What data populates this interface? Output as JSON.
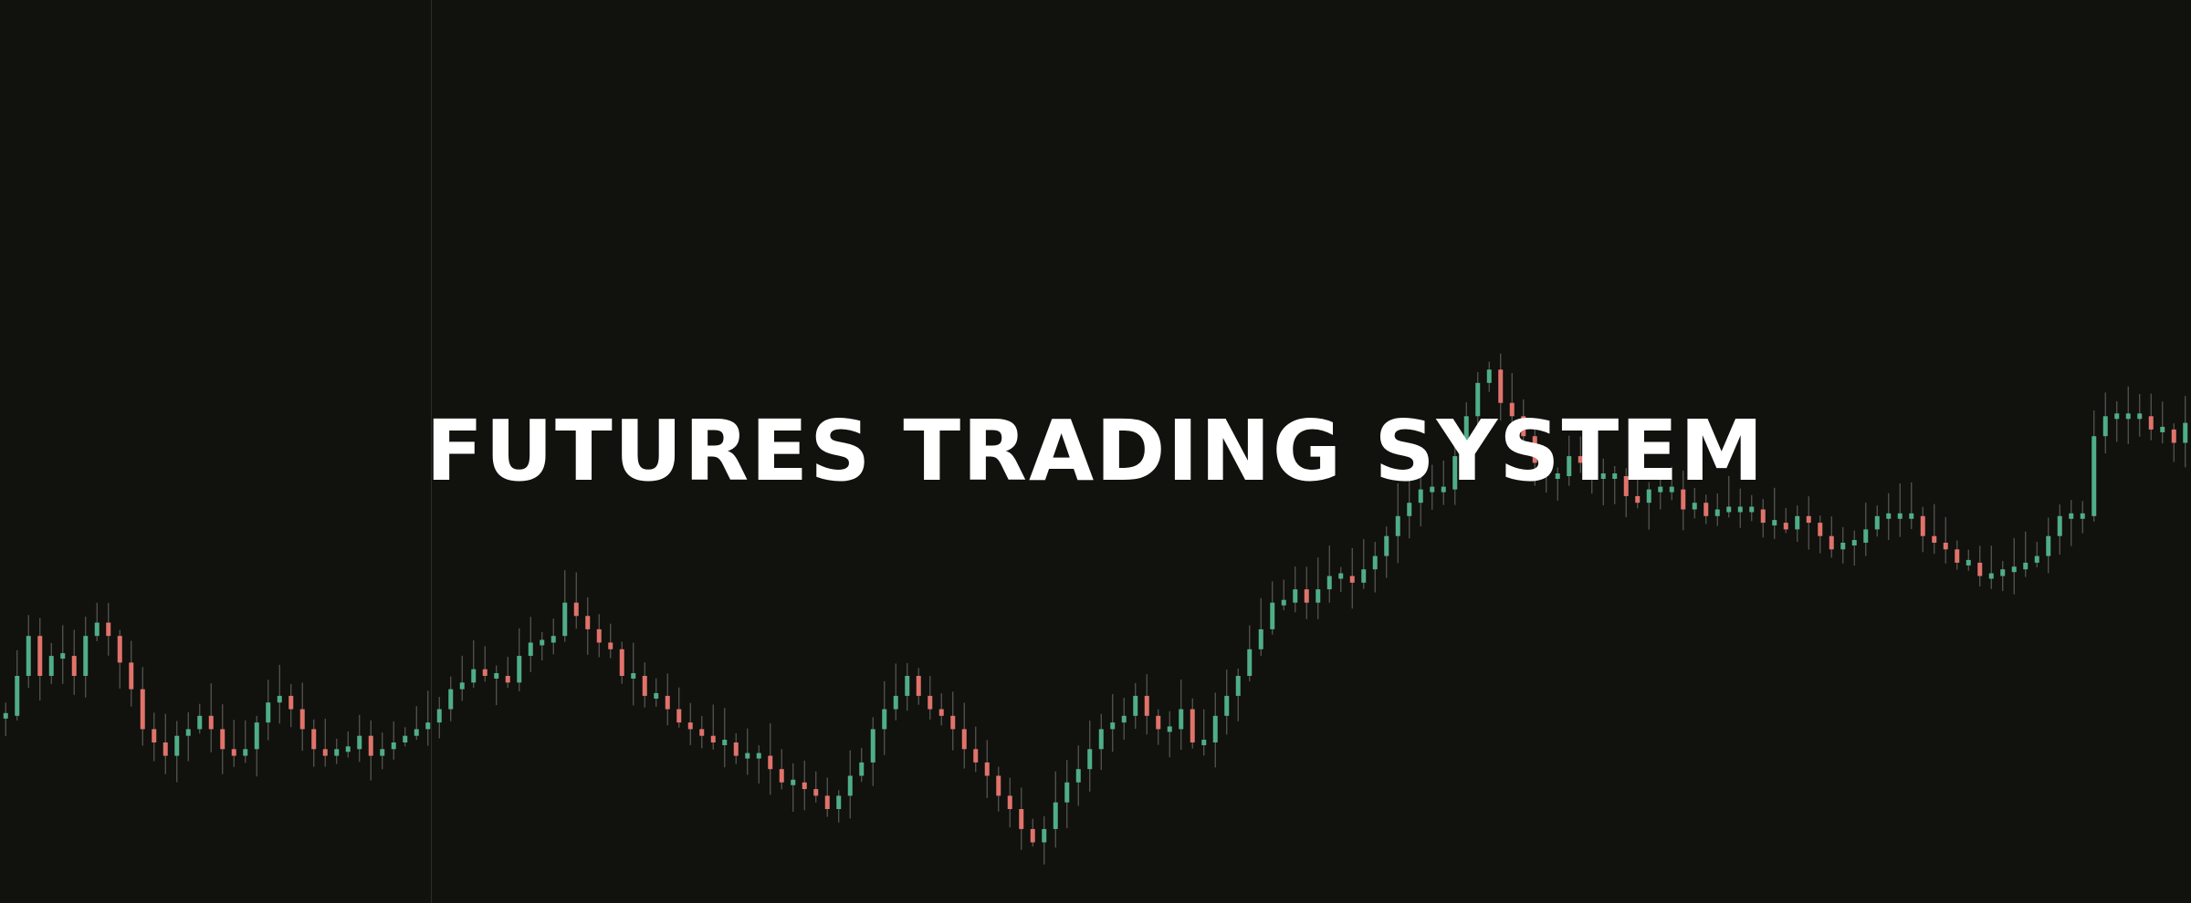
{
  "headline": "FUTURES TRADING SYSTEM",
  "colors": {
    "background": "#11110e",
    "text": "#ffffff",
    "bullish": "#4fae87",
    "bearish": "#e0736a",
    "wick": "#5a5a55"
  },
  "chart_data": {
    "type": "candlestick",
    "title": "",
    "xlabel": "",
    "ylabel": "",
    "ylim": [
      0,
      100
    ],
    "grid": false,
    "legend": "none",
    "series": [
      {
        "values": [
          24,
          30,
          36,
          30,
          33,
          33,
          30,
          36,
          38,
          36,
          32,
          28,
          22,
          20,
          18,
          21,
          22,
          24,
          22,
          19,
          18,
          19,
          23,
          26,
          27,
          25,
          22,
          19,
          18,
          19,
          19,
          21,
          18,
          19,
          20,
          21,
          22,
          23,
          25,
          28,
          29,
          31,
          30,
          30,
          29,
          33,
          35,
          35,
          36,
          41,
          39,
          37,
          35,
          34,
          30,
          30,
          27,
          27,
          25,
          23,
          22,
          21,
          20,
          20,
          18,
          18,
          18,
          16,
          14,
          14,
          13,
          12,
          10,
          12,
          15,
          17,
          22,
          25,
          27,
          30,
          27,
          25,
          24,
          22,
          19,
          17,
          15,
          12,
          10,
          7,
          5,
          7,
          11,
          14,
          16,
          19,
          22,
          23,
          24,
          27,
          24,
          22,
          22,
          25,
          20,
          20,
          24,
          27,
          30,
          34,
          37,
          41,
          41,
          43,
          41,
          43,
          45,
          45,
          44,
          46,
          48,
          51,
          54,
          56,
          58,
          58,
          58,
          63,
          69,
          74,
          76,
          71,
          69,
          66,
          62,
          60,
          60,
          63,
          62,
          60,
          60,
          60,
          57,
          56,
          58,
          58,
          58,
          55,
          56,
          54,
          55,
          55,
          55,
          55,
          53,
          53,
          52,
          54,
          53,
          51,
          49,
          50,
          50,
          52,
          54,
          54,
          54,
          54,
          51,
          50,
          49,
          47,
          47,
          45,
          45,
          46,
          46,
          47,
          48,
          51,
          54,
          54,
          54,
          66,
          69,
          69,
          69,
          69,
          67,
          67,
          65,
          68
        ]
      }
    ]
  }
}
